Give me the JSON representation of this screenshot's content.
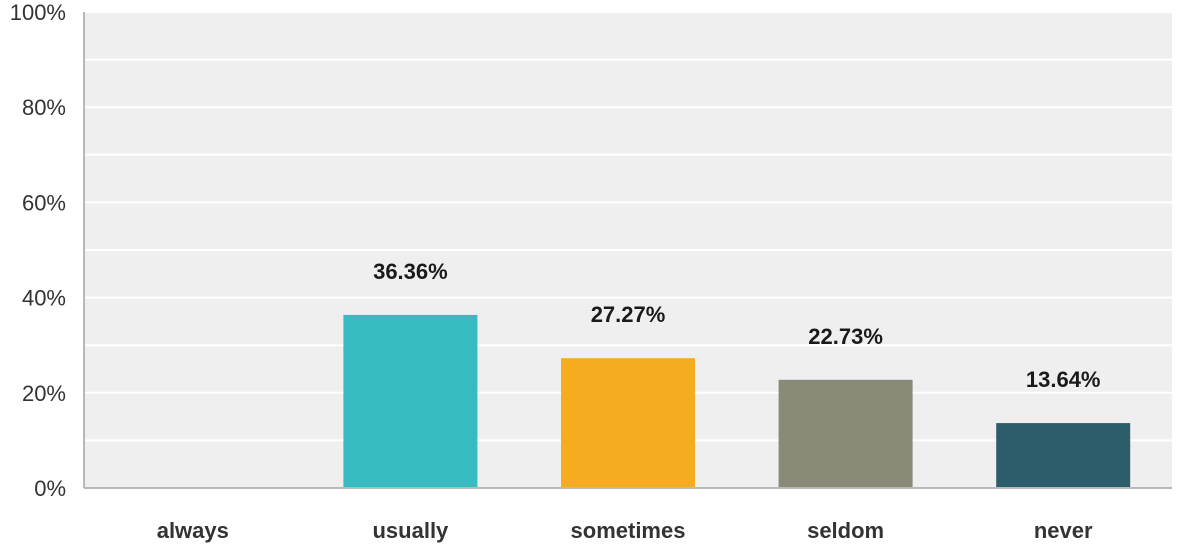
{
  "chart_data": {
    "type": "bar",
    "categories": [
      "always",
      "usually",
      "sometimes",
      "seldom",
      "never"
    ],
    "values": [
      0,
      36.36,
      27.27,
      22.73,
      13.64
    ],
    "data_labels": [
      "",
      "36.36%",
      "27.27%",
      "22.73%",
      "13.64%"
    ],
    "y_ticks": [
      "0%",
      "20%",
      "40%",
      "60%",
      "80%",
      "100%"
    ],
    "y_tick_values": [
      0,
      20,
      40,
      60,
      80,
      100
    ],
    "ylim": [
      0,
      100
    ],
    "minor_grid_step": 10,
    "grid": true,
    "legend": "none",
    "colors": [
      "#36bcc0",
      "#36bcc0",
      "#f5ac1f",
      "#8a8a78",
      "#2d5d6b"
    ],
    "plot_background": "#efefef",
    "grid_color": "#ffffff",
    "axis_color": "#b8b8b8",
    "title": "",
    "xlabel": "",
    "ylabel": ""
  }
}
